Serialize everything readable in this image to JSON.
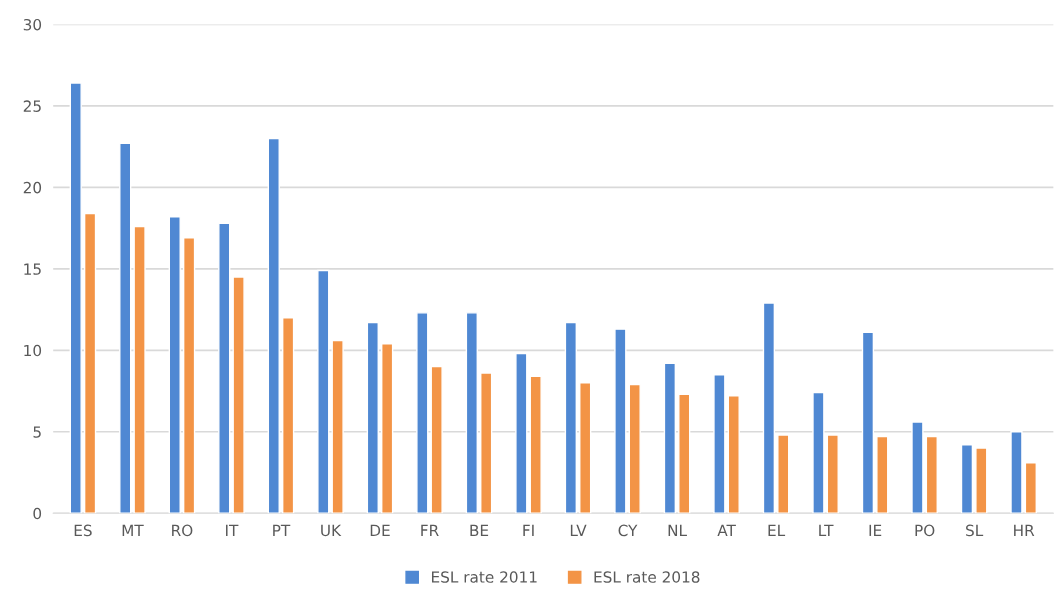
{
  "chart_data": {
    "type": "bar",
    "categories": [
      "ES",
      "MT",
      "RO",
      "IT",
      "PT",
      "UK",
      "DE",
      "FR",
      "BE",
      "FI",
      "LV",
      "CY",
      "NL",
      "AT",
      "EL",
      "LT",
      "IE",
      "PO",
      "SL",
      "HR"
    ],
    "series": [
      {
        "name": "ESL rate 2011",
        "color": "#4f88d3",
        "values": [
          26.4,
          22.7,
          18.2,
          17.8,
          23.0,
          14.9,
          11.7,
          12.3,
          12.3,
          9.8,
          11.7,
          11.3,
          9.2,
          8.5,
          12.9,
          7.4,
          11.1,
          5.6,
          4.2,
          5.0
        ]
      },
      {
        "name": "ESL rate 2018",
        "color": "#f39446",
        "values": [
          18.4,
          17.6,
          16.9,
          14.5,
          12.0,
          10.6,
          10.4,
          9.0,
          8.6,
          8.4,
          8.0,
          7.9,
          7.3,
          7.2,
          4.8,
          4.8,
          4.7,
          4.7,
          4.0,
          3.1
        ]
      }
    ],
    "ylim": [
      0,
      30
    ],
    "yticks": [
      0,
      5,
      10,
      15,
      20,
      25,
      30
    ],
    "grid": "y",
    "legend": "bottom"
  }
}
